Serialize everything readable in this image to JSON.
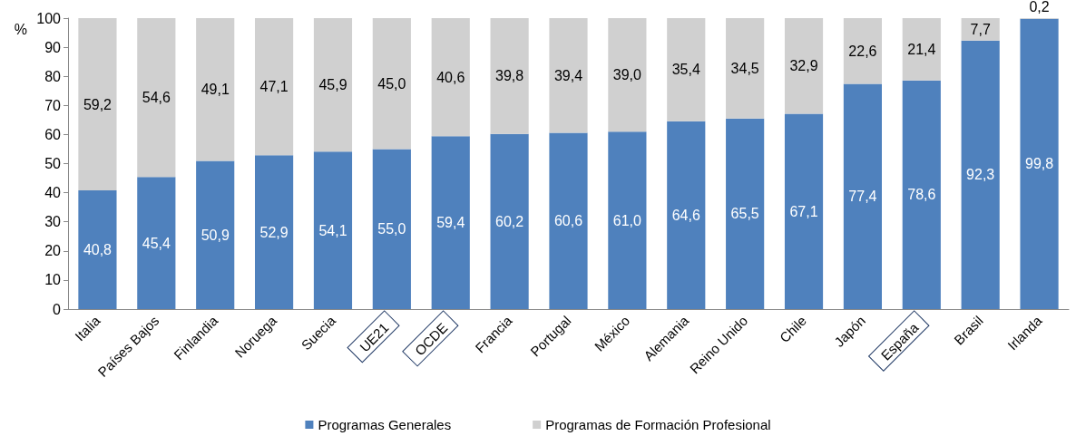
{
  "chart_data": {
    "type": "bar",
    "stacked": true,
    "ylabel": "%",
    "categories": [
      "Italia",
      "Países Bajos",
      "Finlandia",
      "Noruega",
      "Suecia",
      "UE21",
      "OCDE",
      "Francia",
      "Portugal",
      "México",
      "Alemania",
      "Reino Unido",
      "Chile",
      "Japón",
      "España",
      "Brasil",
      "Irlanda"
    ],
    "series": [
      {
        "name": "Programas Generales",
        "color": "#4f81bd",
        "values": [
          40.8,
          45.4,
          50.9,
          52.9,
          54.1,
          55.0,
          59.4,
          60.2,
          60.6,
          61.0,
          64.6,
          65.5,
          67.1,
          77.4,
          78.6,
          92.3,
          99.8
        ],
        "value_labels": [
          "40,8",
          "45,4",
          "50,9",
          "52,9",
          "54,1",
          "55,0",
          "59,4",
          "60,2",
          "60,6",
          "61,0",
          "64,6",
          "65,5",
          "67,1",
          "77,4",
          "78,6",
          "92,3",
          "99,8"
        ]
      },
      {
        "name": "Programas de Formación Profesional",
        "color": "#d0d0d0",
        "values": [
          59.2,
          54.6,
          49.1,
          47.1,
          45.9,
          45.0,
          40.6,
          39.8,
          39.4,
          39.0,
          35.4,
          34.5,
          32.9,
          22.6,
          21.4,
          7.7,
          0.2
        ],
        "value_labels": [
          "59,2",
          "54,6",
          "49,1",
          "47,1",
          "45,9",
          "45,0",
          "40,6",
          "39,8",
          "39,4",
          "39,0",
          "35,4",
          "34,5",
          "32,9",
          "22,6",
          "21,4",
          "7,7",
          "0,2"
        ]
      }
    ],
    "ylim": [
      0,
      100
    ],
    "yticks": [
      0,
      10,
      20,
      30,
      40,
      50,
      60,
      70,
      80,
      90,
      100
    ],
    "grid": false,
    "legend": "bottom"
  }
}
